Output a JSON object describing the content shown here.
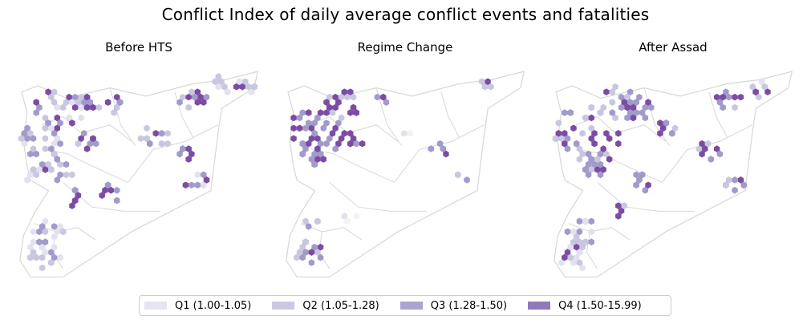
{
  "title": "Conflict Index of daily average conflict events and fatalities",
  "colors": {
    "Q0": "#f3f3f7",
    "Q1": "#e2e1ee",
    "Q2": "#c9c7e0",
    "Q3": "#a19bcb",
    "Q4": "#7b4ca3",
    "border": "#d7d7d7"
  },
  "legend": [
    {
      "label": "Q1 (1.00-1.05)",
      "color": "#e5e4ef"
    },
    {
      "label": "Q2 (1.05-1.28)",
      "color": "#cbc9e2"
    },
    {
      "label": "Q3 (1.28-1.50)",
      "color": "#aaa5d0"
    },
    {
      "label": "Q4 (1.50-15.99)",
      "color": "#8e7ab8"
    }
  ],
  "panels": [
    {
      "title": "Before HTS",
      "clusters": [
        {
          "lon": 36.7,
          "lat": 36.3,
          "q": [
            "Q2",
            "Q3",
            "Q4",
            "Q1"
          ],
          "n": 28
        },
        {
          "lon": 36.2,
          "lat": 35.6,
          "q": [
            "Q1",
            "Q2",
            "Q3"
          ],
          "n": 22
        },
        {
          "lon": 36.8,
          "lat": 35.0,
          "q": [
            "Q3",
            "Q4",
            "Q2"
          ],
          "n": 16
        },
        {
          "lon": 37.5,
          "lat": 36.6,
          "q": [
            "Q3",
            "Q4",
            "Q2"
          ],
          "n": 14
        },
        {
          "lon": 38.2,
          "lat": 36.5,
          "q": [
            "Q2",
            "Q3",
            "Q4"
          ],
          "n": 10
        },
        {
          "lon": 37.2,
          "lat": 34.2,
          "q": [
            "Q3",
            "Q4"
          ],
          "n": 8
        },
        {
          "lon": 38.3,
          "lat": 34.3,
          "q": [
            "Q4",
            "Q3"
          ],
          "n": 8
        },
        {
          "lon": 39.5,
          "lat": 35.7,
          "q": [
            "Q3",
            "Q4",
            "Q2"
          ],
          "n": 12
        },
        {
          "lon": 40.2,
          "lat": 35.3,
          "q": [
            "Q3",
            "Q4"
          ],
          "n": 9
        },
        {
          "lon": 40.6,
          "lat": 34.6,
          "q": [
            "Q3",
            "Q4",
            "Q1"
          ],
          "n": 10
        },
        {
          "lon": 40.5,
          "lat": 36.6,
          "q": [
            "Q2",
            "Q3",
            "Q4"
          ],
          "n": 12
        },
        {
          "lon": 41.3,
          "lat": 37.0,
          "q": [
            "Q1",
            "Q2",
            "Q4"
          ],
          "n": 10
        },
        {
          "lon": 42.0,
          "lat": 36.9,
          "q": [
            "Q1",
            "Q4",
            "Q2"
          ],
          "n": 8
        },
        {
          "lon": 36.4,
          "lat": 33.4,
          "q": [
            "Q2",
            "Q3",
            "Q1"
          ],
          "n": 18
        },
        {
          "lon": 36.3,
          "lat": 32.8,
          "q": [
            "Q2",
            "Q3",
            "Q1"
          ],
          "n": 20
        },
        {
          "lon": 37.5,
          "lat": 35.6,
          "q": [
            "Q2",
            "Q4",
            "Q3"
          ],
          "n": 10
        },
        {
          "lon": 36.0,
          "lat": 34.8,
          "q": [
            "Q1",
            "Q2"
          ],
          "n": 8
        }
      ]
    },
    {
      "title": "Regime Change",
      "clusters": [
        {
          "lon": 36.7,
          "lat": 35.9,
          "q": [
            "Q4",
            "Q4",
            "Q3"
          ],
          "n": 36
        },
        {
          "lon": 37.2,
          "lat": 36.5,
          "q": [
            "Q4",
            "Q4",
            "Q2"
          ],
          "n": 20
        },
        {
          "lon": 36.4,
          "lat": 35.2,
          "q": [
            "Q4",
            "Q3"
          ],
          "n": 12
        },
        {
          "lon": 37.5,
          "lat": 35.5,
          "q": [
            "Q4",
            "Q3"
          ],
          "n": 6
        },
        {
          "lon": 38.3,
          "lat": 36.6,
          "q": [
            "Q4",
            "Q3"
          ],
          "n": 4
        },
        {
          "lon": 40.0,
          "lat": 35.4,
          "q": [
            "Q3",
            "Q4",
            "Q2"
          ],
          "n": 6
        },
        {
          "lon": 40.6,
          "lat": 34.7,
          "q": [
            "Q3",
            "Q2"
          ],
          "n": 3
        },
        {
          "lon": 41.3,
          "lat": 37.0,
          "q": [
            "Q4",
            "Q2",
            "Q1"
          ],
          "n": 4
        },
        {
          "lon": 36.3,
          "lat": 32.9,
          "q": [
            "Q4",
            "Q3",
            "Q2"
          ],
          "n": 16
        },
        {
          "lon": 36.4,
          "lat": 33.6,
          "q": [
            "Q3",
            "Q2"
          ],
          "n": 5
        },
        {
          "lon": 37.5,
          "lat": 33.8,
          "q": [
            "Q0",
            "Q1"
          ],
          "n": 4
        },
        {
          "lon": 39.0,
          "lat": 35.8,
          "q": [
            "Q0",
            "Q1"
          ],
          "n": 3
        }
      ]
    },
    {
      "title": "After Assad",
      "clusters": [
        {
          "lon": 36.6,
          "lat": 35.8,
          "q": [
            "Q4",
            "Q4",
            "Q3",
            "Q2"
          ],
          "n": 40
        },
        {
          "lon": 36.9,
          "lat": 35.1,
          "q": [
            "Q4",
            "Q3",
            "Q2"
          ],
          "n": 20
        },
        {
          "lon": 37.5,
          "lat": 36.6,
          "q": [
            "Q3",
            "Q4",
            "Q2"
          ],
          "n": 16
        },
        {
          "lon": 38.0,
          "lat": 36.4,
          "q": [
            "Q4",
            "Q3"
          ],
          "n": 16
        },
        {
          "lon": 38.8,
          "lat": 35.9,
          "q": [
            "Q3",
            "Q4",
            "Q2"
          ],
          "n": 10
        },
        {
          "lon": 38.2,
          "lat": 34.6,
          "q": [
            "Q4",
            "Q3"
          ],
          "n": 8
        },
        {
          "lon": 40.0,
          "lat": 35.4,
          "q": [
            "Q3",
            "Q4",
            "Q2"
          ],
          "n": 10
        },
        {
          "lon": 40.7,
          "lat": 34.6,
          "q": [
            "Q3",
            "Q4",
            "Q2"
          ],
          "n": 8
        },
        {
          "lon": 40.5,
          "lat": 36.6,
          "q": [
            "Q2",
            "Q3",
            "Q4"
          ],
          "n": 10
        },
        {
          "lon": 41.4,
          "lat": 36.9,
          "q": [
            "Q1",
            "Q2",
            "Q4"
          ],
          "n": 8
        },
        {
          "lon": 36.4,
          "lat": 33.4,
          "q": [
            "Q1",
            "Q2",
            "Q3"
          ],
          "n": 18
        },
        {
          "lon": 36.3,
          "lat": 32.8,
          "q": [
            "Q1",
            "Q2",
            "Q4"
          ],
          "n": 16
        },
        {
          "lon": 37.6,
          "lat": 33.9,
          "q": [
            "Q4",
            "Q2"
          ],
          "n": 4
        }
      ]
    }
  ]
}
